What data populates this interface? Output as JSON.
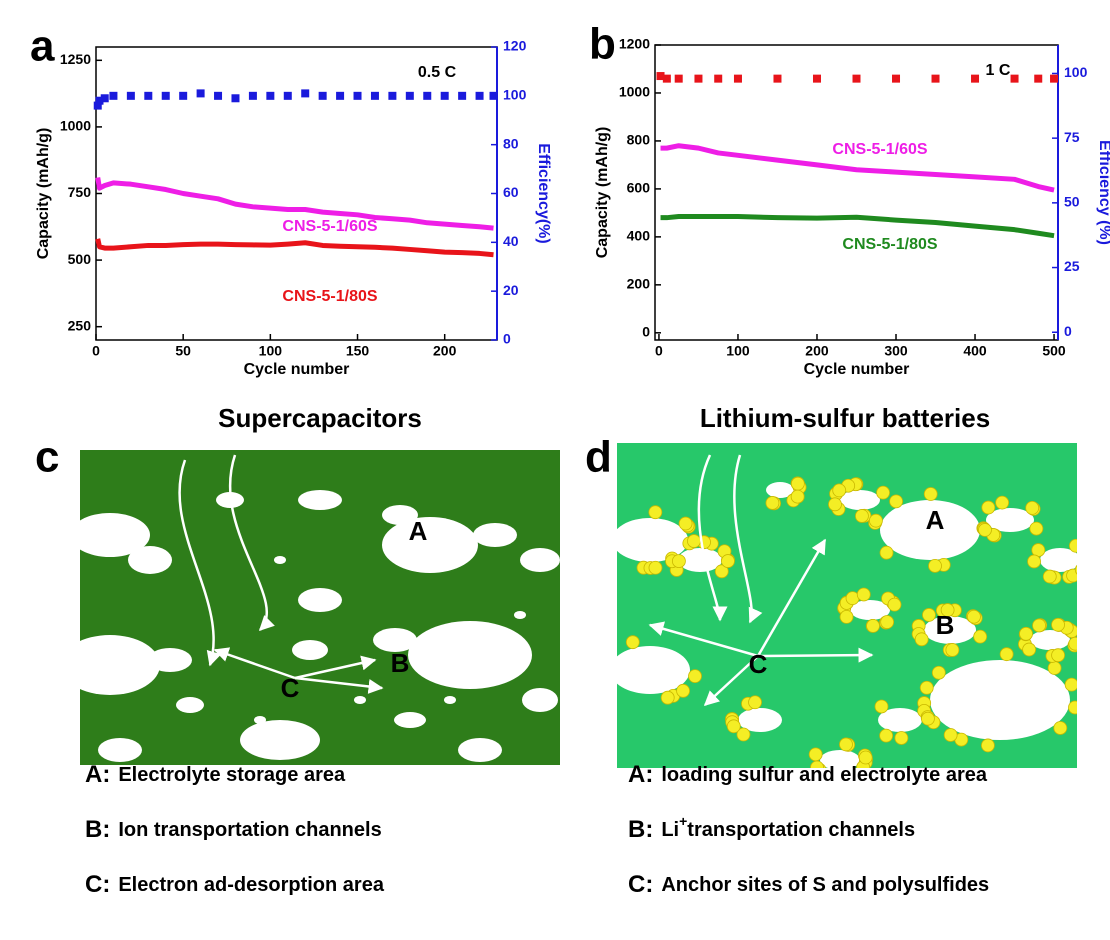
{
  "chart_data": [
    {
      "type": "line",
      "panel": "a",
      "annotation": "0.5 C",
      "xlabel": "Cycle number",
      "ylabel": "Capacity (mAh/g)",
      "y2label": "Efficiency(%)",
      "xlim": [
        0,
        230
      ],
      "xticks": [
        0,
        50,
        100,
        150,
        200
      ],
      "ylim": [
        200,
        1300
      ],
      "yticks": [
        250,
        500,
        750,
        1000,
        1250
      ],
      "y2lim": [
        0,
        120
      ],
      "y2ticks": [
        0,
        20,
        40,
        60,
        80,
        100,
        120
      ],
      "y2color": "#1a1adc",
      "x": [
        1,
        2,
        5,
        10,
        20,
        30,
        40,
        50,
        60,
        70,
        80,
        90,
        100,
        110,
        120,
        130,
        140,
        150,
        160,
        170,
        180,
        190,
        200,
        210,
        220,
        228
      ],
      "series": [
        {
          "name": "CNS-5-1/60S",
          "color": "#ee1ee6",
          "values": [
            810,
            770,
            780,
            790,
            785,
            775,
            765,
            750,
            740,
            730,
            710,
            700,
            695,
            690,
            690,
            680,
            675,
            670,
            660,
            655,
            650,
            640,
            635,
            630,
            625,
            620
          ]
        },
        {
          "name": "CNS-5-1/80S",
          "color": "#e8141a",
          "values": [
            580,
            550,
            545,
            545,
            550,
            555,
            555,
            558,
            560,
            560,
            558,
            557,
            556,
            560,
            565,
            555,
            552,
            550,
            548,
            545,
            540,
            535,
            530,
            528,
            525,
            520
          ]
        },
        {
          "color": "#1a1adc",
          "axis": "y2",
          "mode": "markers",
          "values": [
            96,
            98,
            99,
            100,
            100,
            100,
            100,
            100,
            101,
            100,
            99,
            100,
            100,
            100,
            101,
            100,
            100,
            100,
            100,
            100,
            100,
            100,
            100,
            100,
            100,
            100
          ]
        }
      ]
    },
    {
      "type": "line",
      "panel": "b",
      "annotation": "1 C",
      "xlabel": "Cycle number",
      "ylabel": "Capacity (mAh/g)",
      "y2label": "Efficiency (%)",
      "xlim": [
        -5,
        505
      ],
      "xticks": [
        0,
        100,
        200,
        300,
        400,
        500
      ],
      "ylim": [
        -30,
        1200
      ],
      "yticks": [
        0,
        200,
        400,
        600,
        800,
        1000,
        1200
      ],
      "y2lim": [
        -3,
        111
      ],
      "y2ticks": [
        0,
        25,
        50,
        75,
        100
      ],
      "y2color": "#1a1adc",
      "x": [
        2,
        10,
        25,
        50,
        75,
        100,
        150,
        200,
        250,
        300,
        350,
        400,
        450,
        480,
        500
      ],
      "series": [
        {
          "name": "CNS-5-1/60S",
          "color": "#ee1ee6",
          "values": [
            770,
            770,
            780,
            770,
            750,
            740,
            720,
            700,
            680,
            670,
            660,
            650,
            640,
            610,
            595
          ]
        },
        {
          "name": "CNS-5-1/80S",
          "color": "#1f8a1f",
          "values": [
            480,
            480,
            485,
            485,
            485,
            485,
            480,
            478,
            482,
            470,
            460,
            445,
            430,
            415,
            405
          ]
        },
        {
          "color": "#e8141a",
          "axis": "y2",
          "mode": "markers",
          "values": [
            99,
            98,
            98,
            98,
            98,
            98,
            98,
            98,
            98,
            98,
            98,
            98,
            98,
            98,
            98
          ]
        }
      ]
    }
  ],
  "diagrams": [
    {
      "panel": "c",
      "title": "Supercapacitors",
      "labels": [
        "A",
        "B",
        "C"
      ],
      "captions": [
        {
          "key": "A:",
          "text": "Electrolyte storage area"
        },
        {
          "key": "B:",
          "text": "Ion transportation channels"
        },
        {
          "key": "C:",
          "text": "Electron ad-desorption area"
        }
      ]
    },
    {
      "panel": "d",
      "title": "Lithium-sulfur batteries",
      "labels": [
        "A",
        "B",
        "C"
      ],
      "captions": [
        {
          "key": "A:",
          "text": "loading sulfur and electrolyte area"
        },
        {
          "key": "B:",
          "text": "Li",
          "sup": "+",
          "rest": "transportation channels"
        },
        {
          "key": "C:",
          "text": "Anchor sites of S and polysulfides"
        }
      ]
    }
  ]
}
